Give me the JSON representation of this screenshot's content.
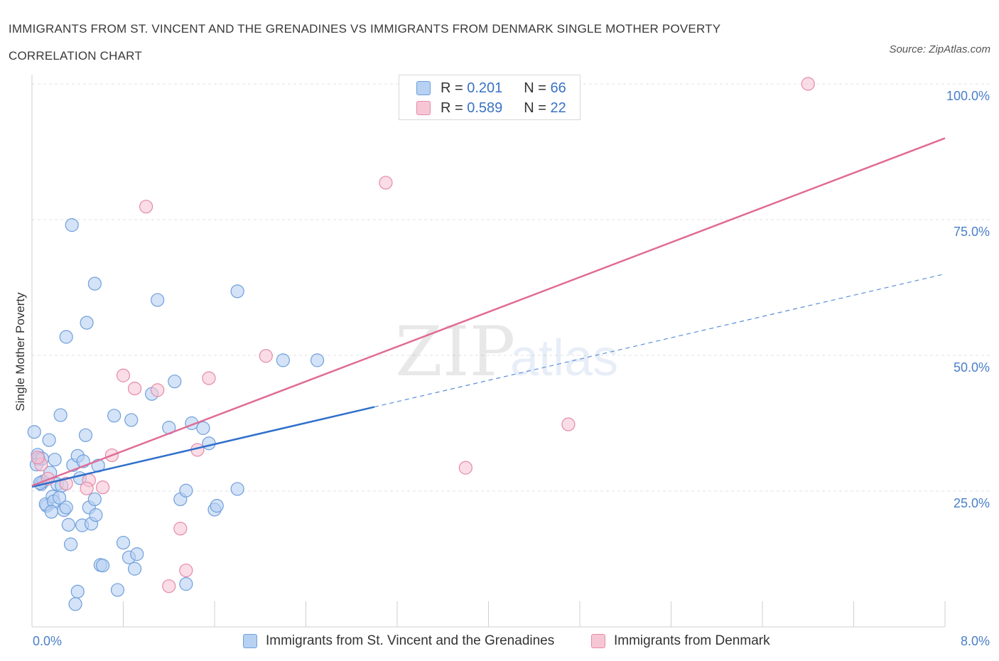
{
  "title": "IMMIGRANTS FROM ST. VINCENT AND THE GRENADINES VS IMMIGRANTS FROM DENMARK SINGLE MOTHER POVERTY CORRELATION CHART",
  "source": "Source: ZipAtlas.com",
  "watermark": {
    "zip": "ZIP",
    "atlas": "atlas"
  },
  "legend_top": [
    {
      "r_label": "R =",
      "r_value": "0.201",
      "n_label": "N =",
      "n_value": "66"
    },
    {
      "r_label": "R =",
      "r_value": "0.589",
      "n_label": "N =",
      "n_value": "22"
    }
  ],
  "chart_data": {
    "type": "scatter",
    "ylabel": "Single Mother Poverty",
    "xlim": [
      0,
      8
    ],
    "ylim": [
      0,
      100
    ],
    "x_tick_labels": [
      "0.0%",
      "8.0%"
    ],
    "y_tick_labels": [
      "25.0%",
      "50.0%",
      "75.0%",
      "100.0%"
    ],
    "y_ticks": [
      25,
      50,
      75,
      100
    ],
    "series": [
      {
        "name": "Immigrants from St. Vincent and the Grenadines",
        "color": "#6f9fdc",
        "fill": "#b7d1f2",
        "R": 0.201,
        "N": 66,
        "trend": {
          "x0": 0.0,
          "y0": 25.8,
          "x1": 3.0,
          "y1": 40.5,
          "x_dash_end": 8.0,
          "y_dash_end": 65.0
        },
        "points": [
          [
            0.02,
            35.9
          ],
          [
            0.05,
            31.7
          ],
          [
            0.06,
            30.9
          ],
          [
            0.04,
            29.9
          ],
          [
            0.08,
            26.3
          ],
          [
            0.1,
            26.8
          ],
          [
            0.13,
            22.3
          ],
          [
            0.12,
            22.6
          ],
          [
            0.15,
            34.4
          ],
          [
            0.16,
            28.4
          ],
          [
            0.2,
            30.8
          ],
          [
            0.18,
            24.0
          ],
          [
            0.19,
            23.1
          ],
          [
            0.22,
            26.3
          ],
          [
            0.24,
            23.8
          ],
          [
            0.26,
            26.0
          ],
          [
            0.28,
            21.5
          ],
          [
            0.3,
            22.0
          ],
          [
            0.25,
            39.0
          ],
          [
            0.32,
            18.8
          ],
          [
            0.34,
            15.2
          ],
          [
            0.36,
            29.8
          ],
          [
            0.4,
            31.5
          ],
          [
            0.42,
            27.4
          ],
          [
            0.44,
            18.7
          ],
          [
            0.45,
            30.5
          ],
          [
            0.47,
            35.3
          ],
          [
            0.5,
            22.0
          ],
          [
            0.52,
            19.0
          ],
          [
            0.55,
            23.5
          ],
          [
            0.56,
            20.6
          ],
          [
            0.58,
            29.7
          ],
          [
            0.6,
            11.4
          ],
          [
            0.62,
            11.3
          ],
          [
            0.72,
            38.9
          ],
          [
            0.75,
            6.8
          ],
          [
            0.8,
            15.5
          ],
          [
            0.85,
            12.8
          ],
          [
            0.87,
            38.1
          ],
          [
            0.9,
            10.7
          ],
          [
            0.92,
            13.4
          ],
          [
            1.05,
            42.9
          ],
          [
            1.2,
            36.7
          ],
          [
            1.3,
            23.5
          ],
          [
            1.35,
            25.1
          ],
          [
            1.4,
            37.5
          ],
          [
            1.5,
            36.6
          ],
          [
            1.55,
            33.8
          ],
          [
            1.6,
            21.6
          ],
          [
            1.62,
            22.3
          ],
          [
            1.8,
            61.8
          ],
          [
            1.8,
            25.4
          ],
          [
            2.2,
            49.1
          ],
          [
            2.5,
            49.1
          ],
          [
            0.35,
            74.0
          ],
          [
            0.55,
            63.2
          ],
          [
            0.48,
            56.0
          ],
          [
            0.3,
            53.4
          ],
          [
            1.1,
            60.2
          ],
          [
            1.25,
            45.2
          ],
          [
            0.4,
            6.5
          ],
          [
            0.38,
            4.2
          ],
          [
            1.35,
            7.9
          ],
          [
            0.07,
            26.5
          ],
          [
            0.09,
            31.0
          ],
          [
            0.17,
            21.2
          ]
        ]
      },
      {
        "name": "Immigrants from Denmark",
        "color": "#e58aa9",
        "fill": "#f7c6d5",
        "R": 0.589,
        "N": 22,
        "trend": {
          "x0": 0.0,
          "y0": 26.0,
          "x1": 8.0,
          "y1": 90.0
        },
        "points": [
          [
            6.8,
            100.0
          ],
          [
            3.1,
            81.8
          ],
          [
            1.0,
            77.4
          ],
          [
            2.05,
            49.9
          ],
          [
            0.8,
            46.3
          ],
          [
            0.9,
            43.9
          ],
          [
            1.1,
            43.6
          ],
          [
            1.55,
            45.8
          ],
          [
            0.7,
            31.6
          ],
          [
            0.5,
            27.0
          ],
          [
            0.48,
            25.5
          ],
          [
            0.62,
            25.7
          ],
          [
            0.3,
            26.4
          ],
          [
            0.14,
            27.3
          ],
          [
            0.08,
            29.9
          ],
          [
            0.05,
            31.2
          ],
          [
            1.45,
            32.6
          ],
          [
            1.3,
            18.1
          ],
          [
            1.35,
            10.4
          ],
          [
            1.2,
            7.5
          ],
          [
            3.8,
            29.3
          ],
          [
            4.7,
            37.3
          ]
        ]
      }
    ]
  }
}
